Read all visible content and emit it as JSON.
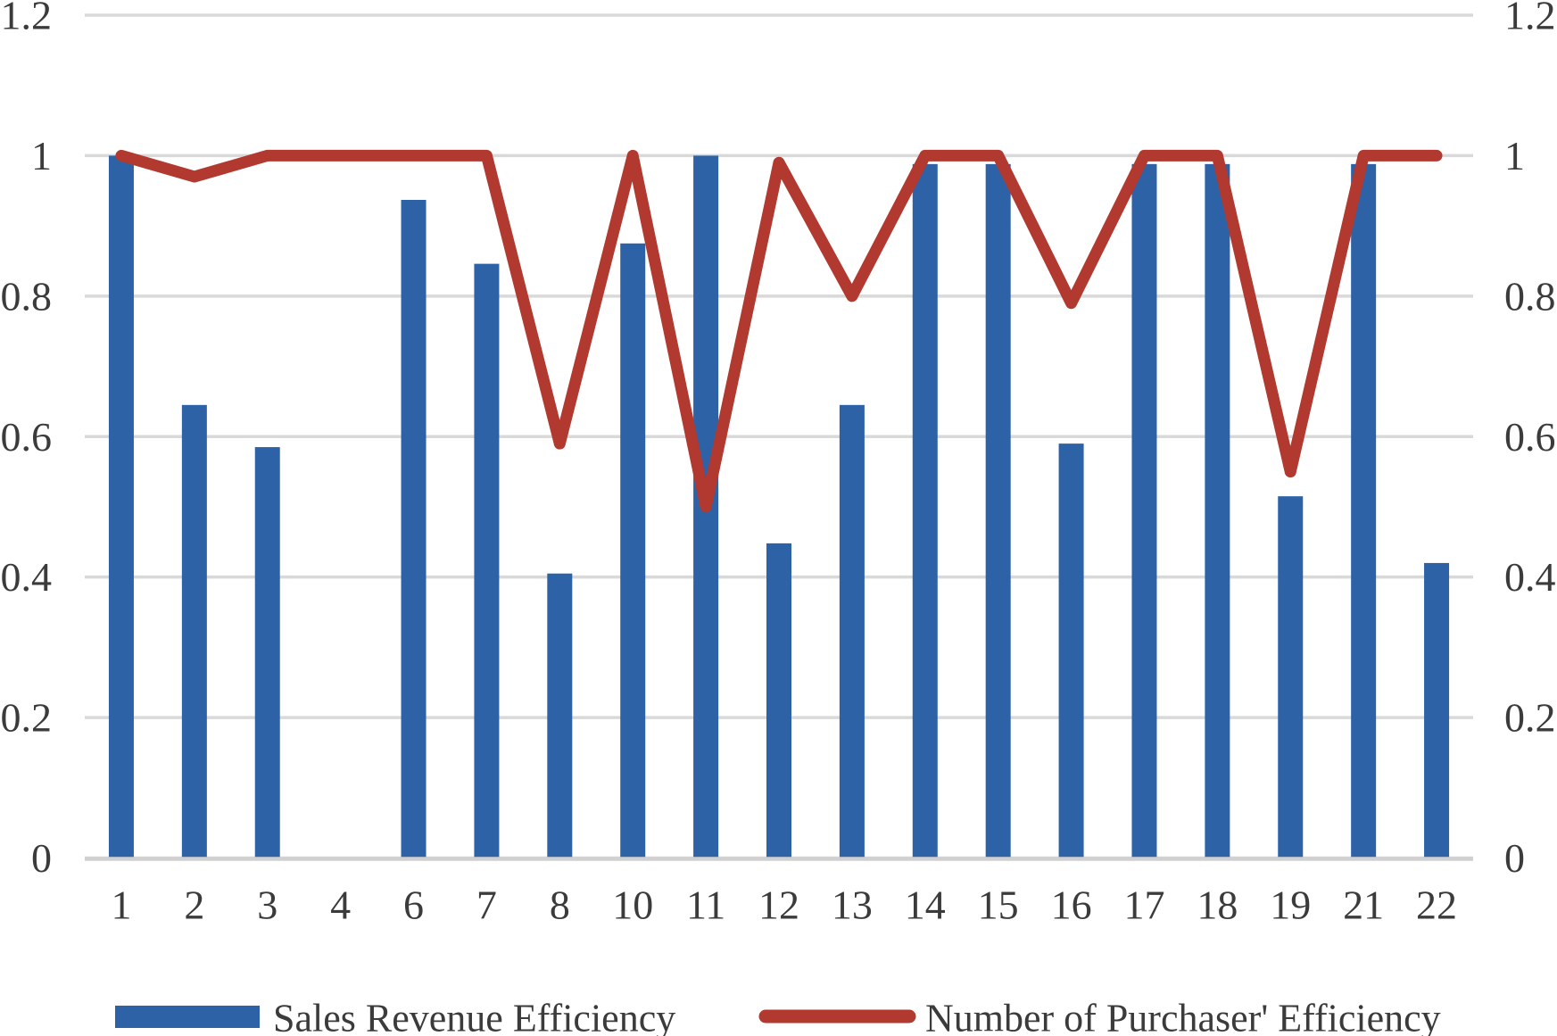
{
  "chart_data": {
    "type": "combo",
    "title": "",
    "xlabel": "",
    "ylabel": "",
    "categories": [
      "1",
      "2",
      "3",
      "4",
      "6",
      "7",
      "8",
      "10",
      "11",
      "12",
      "13",
      "14",
      "15",
      "16",
      "17",
      "18",
      "19",
      "21",
      "22"
    ],
    "series": [
      {
        "name": "Sales Revenue Efficiency",
        "type": "bar",
        "color": "#2e62a7",
        "values": [
          1.0,
          0.645,
          0.585,
          null,
          0.937,
          0.846,
          0.405,
          0.875,
          1.0,
          0.448,
          0.645,
          0.988,
          0.988,
          0.59,
          0.988,
          0.988,
          0.515,
          0.988,
          0.42
        ]
      },
      {
        "name": "Number of Purchaser' Efficiency",
        "type": "line",
        "color": "#b1392f",
        "values": [
          1.0,
          0.97,
          1.0,
          1.0,
          1.0,
          1.0,
          0.59,
          1.0,
          0.5,
          0.99,
          0.8,
          1.0,
          1.0,
          0.79,
          1.0,
          1.0,
          0.55,
          1.0,
          1.0
        ]
      }
    ],
    "ylim": [
      0,
      1.2
    ],
    "y_ticks_left": [
      "1.2",
      "1",
      "0.8",
      "0.6",
      "0.4",
      "0.2",
      "0"
    ],
    "y_ticks_right": [
      "1.2",
      "1",
      "0.8",
      "0.6",
      "0.4",
      "0.2",
      "0"
    ],
    "y_tick_values": [
      1.2,
      1,
      0.8,
      0.6,
      0.4,
      0.2,
      0
    ],
    "grid": true,
    "legend_position": "bottom",
    "colors": {
      "bar": "#2e62a7",
      "line": "#b1392f",
      "gridline": "#d9d9d9",
      "axis_line": "#d0d0d0",
      "label_text": "#3b3b3b",
      "background": "#ffffff"
    }
  }
}
